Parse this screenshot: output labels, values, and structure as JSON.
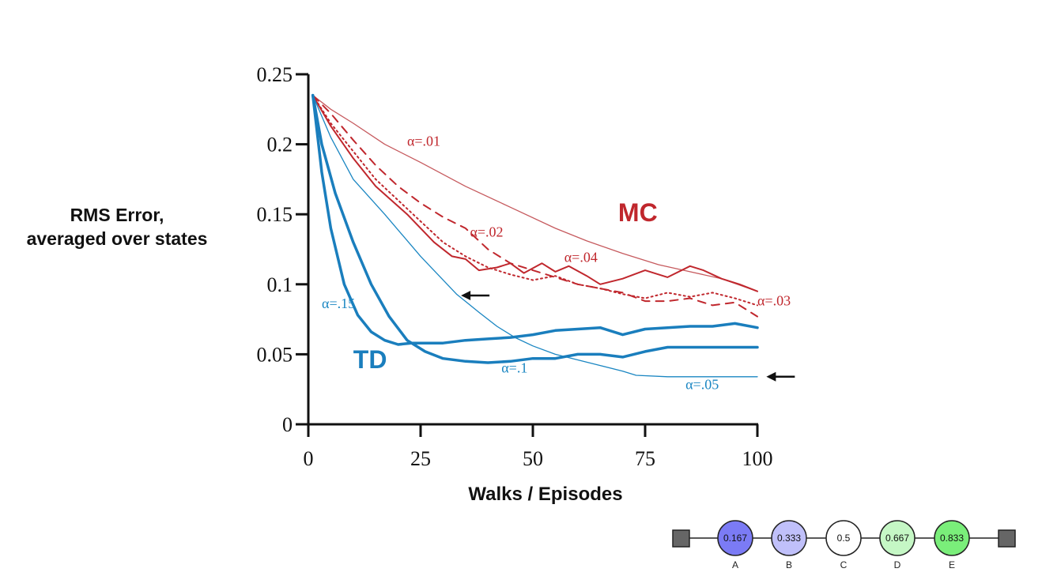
{
  "chart_data": {
    "type": "line",
    "title": "",
    "xlabel": "Walks / Episodes",
    "ylabel": "RMS Error,\naveraged over states",
    "ylabel_lines": [
      "RMS Error,",
      "averaged over states"
    ],
    "xlim": [
      0,
      100
    ],
    "ylim": [
      0,
      0.25
    ],
    "xticks": [
      0,
      25,
      50,
      75,
      100
    ],
    "xtick_labels": [
      "0",
      "25",
      "50",
      "75",
      "100"
    ],
    "yticks": [
      0,
      0.05,
      0.1,
      0.15,
      0.2,
      0.25
    ],
    "ytick_labels": [
      "0",
      "0.05",
      "0.1",
      "0.15",
      "0.2",
      "0.25"
    ],
    "grid": false,
    "groups": [
      {
        "name": "MC",
        "color": "#c0272d"
      },
      {
        "name": "TD",
        "color": "#1a7ebd"
      }
    ],
    "series": [
      {
        "name": "α=.01",
        "group": "MC",
        "style": "thin-solid",
        "color": "#c65a5e",
        "x": [
          1,
          5,
          10,
          17,
          25,
          35,
          45,
          55,
          62,
          70,
          78,
          85,
          92,
          100
        ],
        "y": [
          0.235,
          0.225,
          0.215,
          0.2,
          0.187,
          0.17,
          0.155,
          0.14,
          0.131,
          0.122,
          0.114,
          0.109,
          0.104,
          0.095
        ]
      },
      {
        "name": "α=.02",
        "group": "MC",
        "style": "dashed",
        "color": "#c0272d",
        "x": [
          1,
          5,
          10,
          15,
          20,
          25,
          30,
          35,
          40,
          45,
          50,
          55,
          60,
          65,
          70,
          75,
          80,
          85,
          90,
          95,
          100
        ],
        "y": [
          0.235,
          0.222,
          0.203,
          0.185,
          0.17,
          0.158,
          0.148,
          0.14,
          0.125,
          0.115,
          0.11,
          0.105,
          0.1,
          0.097,
          0.094,
          0.088,
          0.088,
          0.09,
          0.085,
          0.087,
          0.077
        ]
      },
      {
        "name": "α=.03",
        "group": "MC",
        "style": "dotted",
        "color": "#c0272d",
        "x": [
          1,
          5,
          10,
          15,
          20,
          25,
          30,
          35,
          40,
          45,
          50,
          55,
          60,
          65,
          70,
          75,
          80,
          85,
          90,
          95,
          100
        ],
        "y": [
          0.235,
          0.215,
          0.195,
          0.175,
          0.16,
          0.145,
          0.13,
          0.12,
          0.112,
          0.107,
          0.103,
          0.106,
          0.1,
          0.097,
          0.093,
          0.09,
          0.094,
          0.091,
          0.094,
          0.09,
          0.085
        ]
      },
      {
        "name": "α=.04",
        "group": "MC",
        "style": "solid",
        "color": "#c0272d",
        "x": [
          1,
          5,
          10,
          15,
          22,
          28,
          32,
          35,
          38,
          42,
          45,
          48,
          52,
          55,
          58,
          62,
          65,
          70,
          75,
          80,
          85,
          88,
          92,
          96,
          100
        ],
        "y": [
          0.235,
          0.213,
          0.19,
          0.17,
          0.15,
          0.13,
          0.12,
          0.118,
          0.11,
          0.112,
          0.115,
          0.108,
          0.115,
          0.109,
          0.113,
          0.106,
          0.1,
          0.104,
          0.11,
          0.105,
          0.113,
          0.11,
          0.104,
          0.1,
          0.095
        ]
      },
      {
        "name": "α=.05",
        "group": "TD",
        "style": "thin-solid",
        "color": "#1a86c2",
        "x": [
          1,
          5,
          10,
          17,
          25,
          33,
          38,
          42,
          46,
          50,
          55,
          60,
          65,
          70,
          73,
          80,
          90,
          95,
          100
        ],
        "y": [
          0.235,
          0.205,
          0.175,
          0.15,
          0.12,
          0.093,
          0.08,
          0.07,
          0.062,
          0.056,
          0.05,
          0.046,
          0.042,
          0.038,
          0.035,
          0.034,
          0.034,
          0.034,
          0.034
        ]
      },
      {
        "name": "α=.1",
        "group": "TD",
        "style": "thick-solid",
        "color": "#1a7ebd",
        "x": [
          1,
          3,
          6,
          10,
          14,
          18,
          22,
          26,
          30,
          35,
          40,
          45,
          50,
          55,
          60,
          65,
          70,
          75,
          80,
          85,
          90,
          95,
          100
        ],
        "y": [
          0.235,
          0.2,
          0.165,
          0.13,
          0.1,
          0.077,
          0.06,
          0.052,
          0.047,
          0.045,
          0.044,
          0.045,
          0.047,
          0.047,
          0.05,
          0.05,
          0.048,
          0.052,
          0.055,
          0.055,
          0.055,
          0.055,
          0.055
        ]
      },
      {
        "name": "α=.15",
        "group": "TD",
        "style": "thick-solid",
        "color": "#1a7ebd",
        "x": [
          1,
          3,
          5,
          8,
          11,
          14,
          17,
          20,
          23,
          26,
          30,
          35,
          40,
          45,
          50,
          55,
          60,
          65,
          70,
          75,
          80,
          85,
          90,
          95,
          100
        ],
        "y": [
          0.235,
          0.18,
          0.14,
          0.1,
          0.078,
          0.066,
          0.06,
          0.057,
          0.058,
          0.058,
          0.058,
          0.06,
          0.061,
          0.062,
          0.064,
          0.067,
          0.068,
          0.069,
          0.064,
          0.068,
          0.069,
          0.07,
          0.07,
          0.072,
          0.069
        ]
      }
    ],
    "annotations": [
      {
        "text": "α=.01",
        "series": "α=.01",
        "x": 22,
        "y": 0.199
      },
      {
        "text": "α=.02",
        "series": "α=.02",
        "x": 36,
        "y": 0.134
      },
      {
        "text": "α=.03",
        "series": "α=.03",
        "x": 100,
        "y": 0.085
      },
      {
        "text": "α=.04",
        "series": "α=.04",
        "x": 57,
        "y": 0.116
      },
      {
        "text": "α=.05",
        "series": "α=.05",
        "x": 84,
        "y": 0.025
      },
      {
        "text": "α=.1",
        "series": "α=.1",
        "x": 43,
        "y": 0.037
      },
      {
        "text": "α=.15",
        "series": "α=.15",
        "x": 3,
        "y": 0.083
      },
      {
        "text": "MC",
        "group": "MC",
        "x": 69,
        "y": 0.145
      },
      {
        "text": "TD",
        "group": "TD",
        "x": 10,
        "y": 0.04
      }
    ],
    "arrows": [
      {
        "direction": "left",
        "points_to": "α=.05",
        "x": 34,
        "y": 0.092
      },
      {
        "direction": "left",
        "points_to": "α=.05 final",
        "x": 102,
        "y": 0.034
      }
    ]
  },
  "random_walk": {
    "terminals": [
      "left-terminal",
      "right-terminal"
    ],
    "states": [
      {
        "letter": "A",
        "value": "0.167",
        "fill": "#7b7bf5"
      },
      {
        "letter": "B",
        "value": "0.333",
        "fill": "#c0c0fa"
      },
      {
        "letter": "C",
        "value": "0.5",
        "fill": "#ffffff"
      },
      {
        "letter": "D",
        "value": "0.667",
        "fill": "#c5f7c5"
      },
      {
        "letter": "E",
        "value": "0.833",
        "fill": "#7aee7a"
      }
    ]
  }
}
